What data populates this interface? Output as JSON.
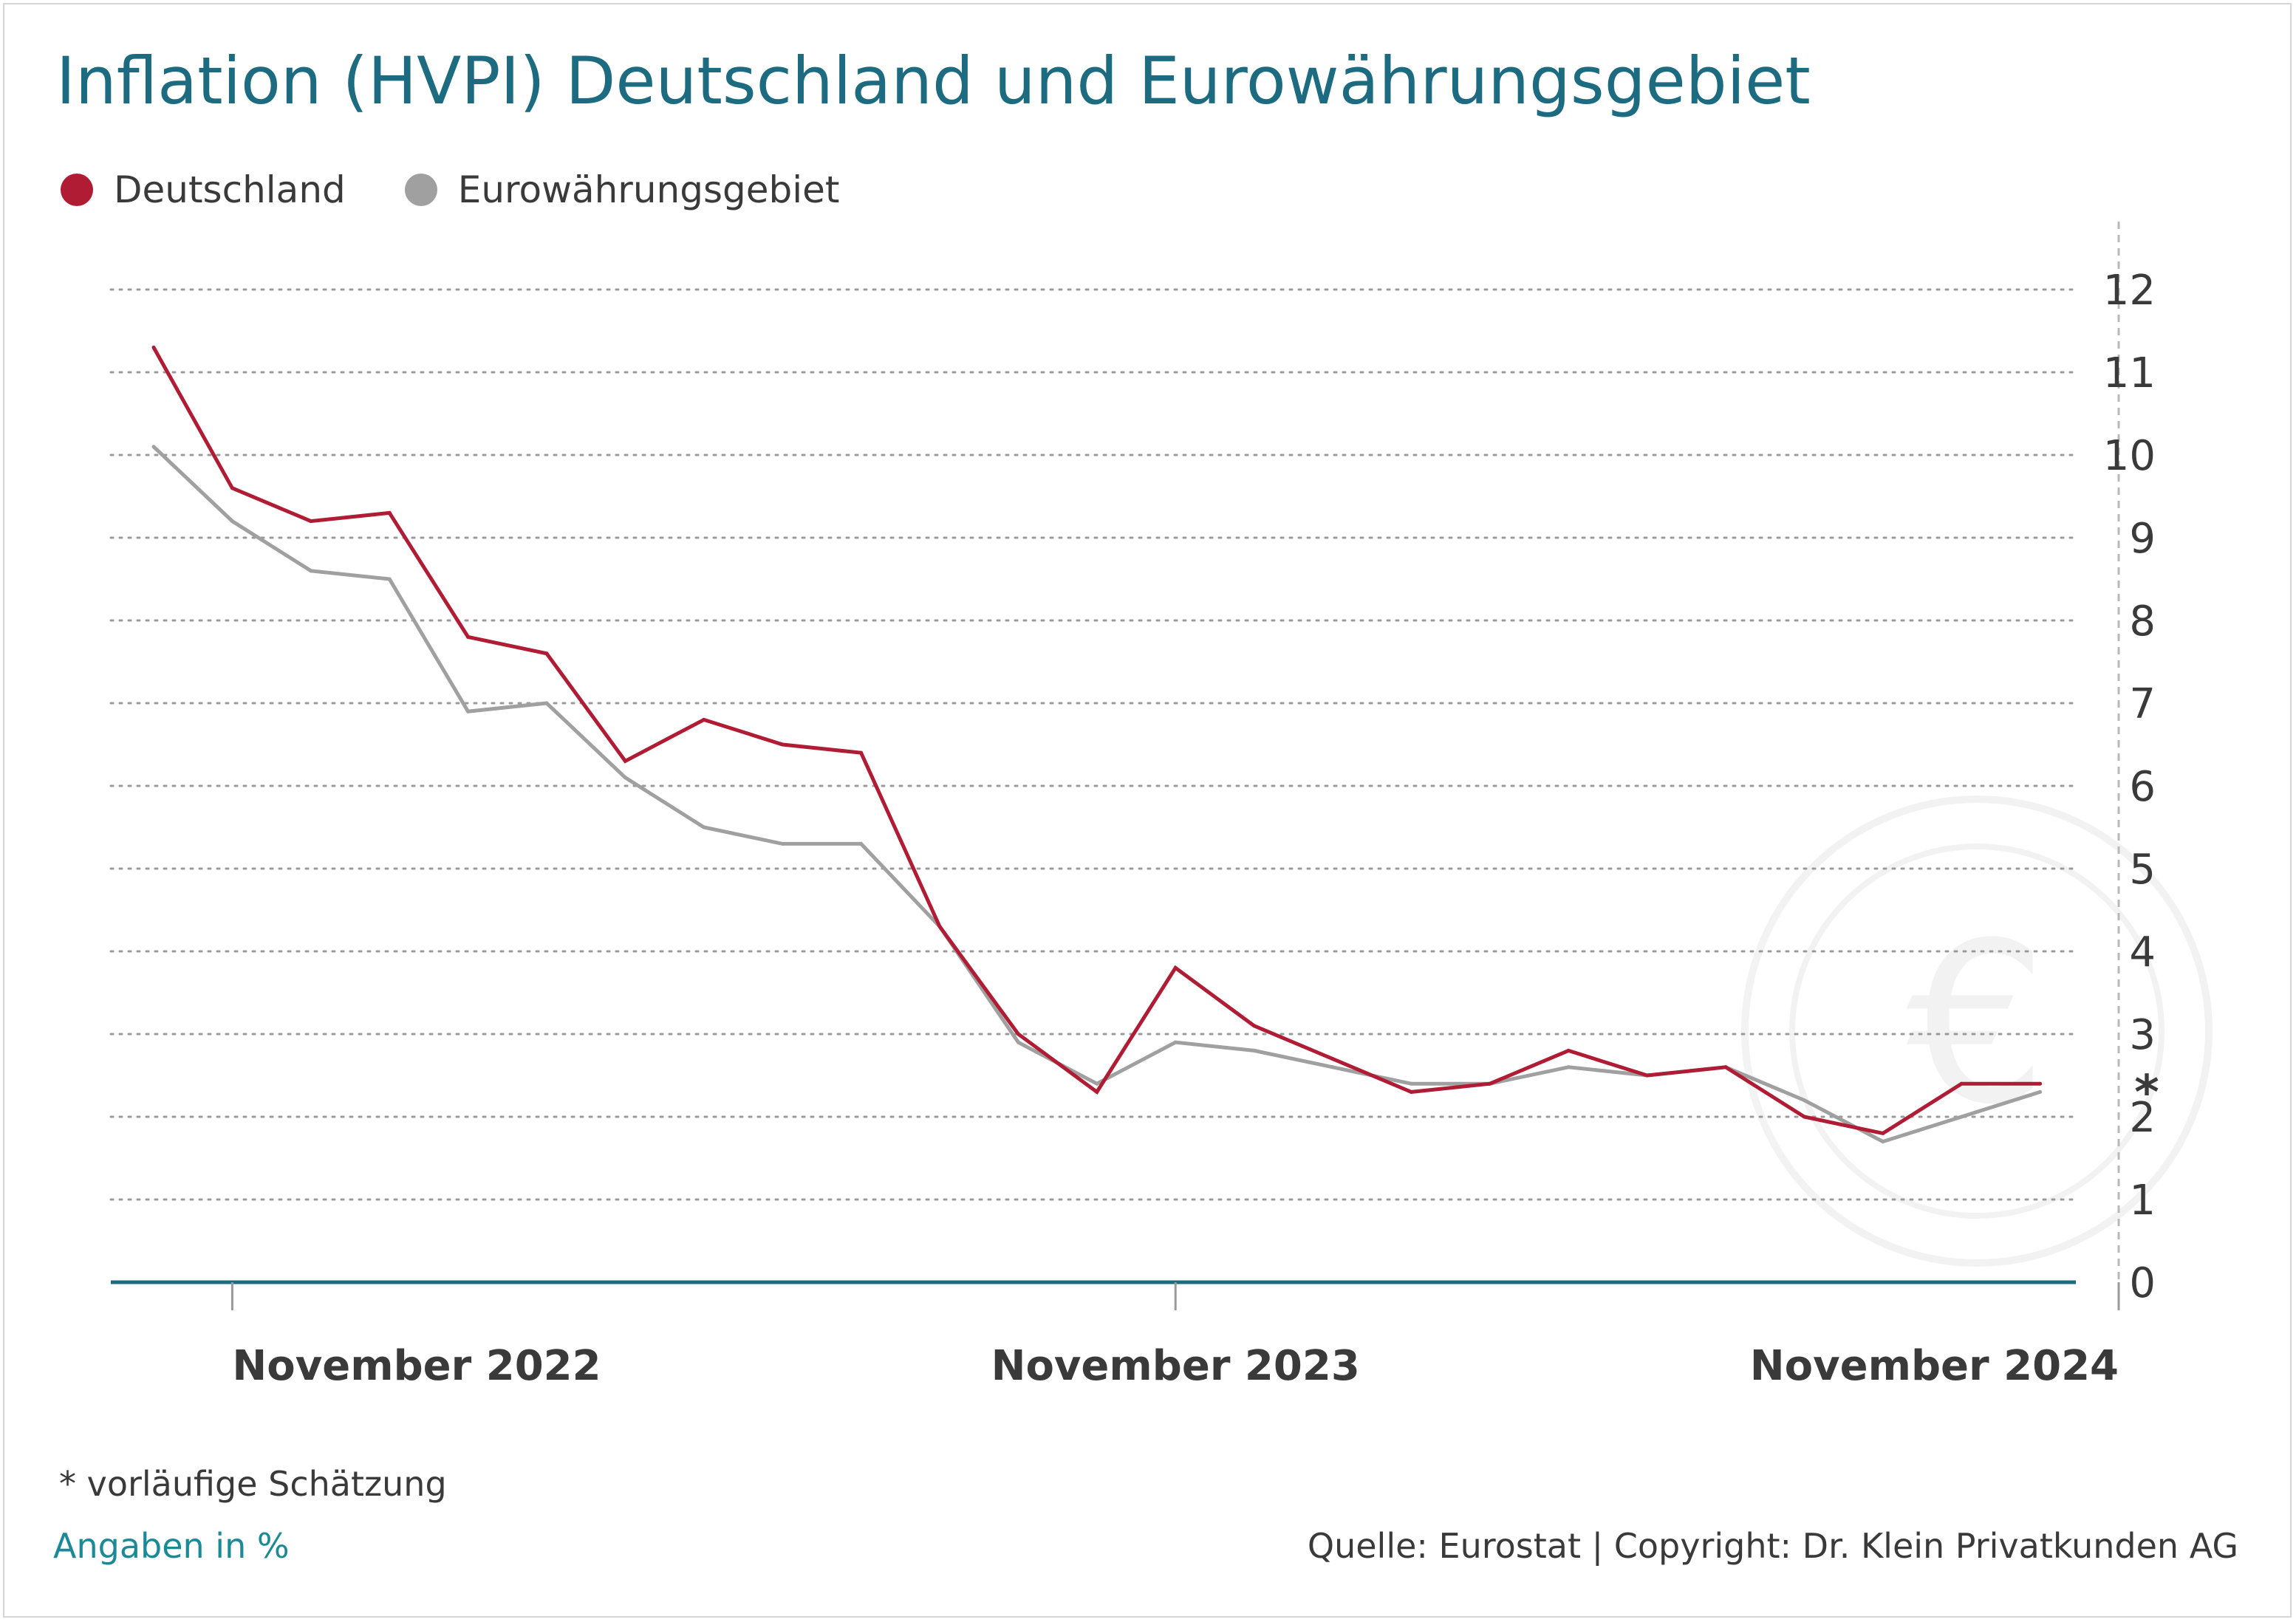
{
  "title": "Inflation (HVPI) Deutschland und Eurowährungsgebiet",
  "legend": {
    "items": [
      {
        "label": "Deutschland",
        "color": "#b01c34"
      },
      {
        "label": "Eurowährungsgebiet",
        "color": "#a0a0a0"
      }
    ]
  },
  "footnote": "*  vorläufige Schätzung",
  "units": "Angaben in %",
  "source": "Quelle: Eurostat | Copyright: Dr. Klein Privatkunden AG",
  "estimate_marker": "*",
  "watermark_icon": "euro-coin-icon",
  "colors": {
    "title": "#1c6b80",
    "axis": "#1c6b80",
    "grid": "#9a9a9a",
    "deutschland": "#b01c34",
    "euro": "#a0a0a0"
  },
  "chart_data": {
    "type": "line",
    "x": [
      "2022-10",
      "2022-11",
      "2022-12",
      "2023-01",
      "2023-02",
      "2023-03",
      "2023-04",
      "2023-05",
      "2023-06",
      "2023-07",
      "2023-08",
      "2023-09",
      "2023-10",
      "2023-11",
      "2023-12",
      "2024-01",
      "2024-02",
      "2024-03",
      "2024-04",
      "2024-05",
      "2024-06",
      "2024-07",
      "2024-08",
      "2024-09",
      "2024-10",
      "2024-11"
    ],
    "x_tick_labels": [
      {
        "x": "2022-11",
        "label": "November 2022"
      },
      {
        "x": "2023-11",
        "label": "November 2023"
      },
      {
        "x": "2024-11",
        "label": "November 2024"
      }
    ],
    "series": [
      {
        "name": "Deutschland",
        "color": "#b01c34",
        "values": [
          11.3,
          9.6,
          9.2,
          9.3,
          7.8,
          7.6,
          6.3,
          6.8,
          6.5,
          6.4,
          4.3,
          3.0,
          2.3,
          3.8,
          3.1,
          2.7,
          2.3,
          2.4,
          2.8,
          2.5,
          2.6,
          2.0,
          1.8,
          2.4,
          2.4,
          null
        ]
      },
      {
        "name": "Eurowährungsgebiet",
        "color": "#a0a0a0",
        "values": [
          10.1,
          9.2,
          8.6,
          8.5,
          6.9,
          7.0,
          6.1,
          5.5,
          5.3,
          5.3,
          4.3,
          2.9,
          2.4,
          2.9,
          2.8,
          2.6,
          2.4,
          2.4,
          2.6,
          2.5,
          2.6,
          2.2,
          1.7,
          2.0,
          2.3,
          null
        ]
      }
    ],
    "y_ticks": [
      0,
      1,
      2,
      3,
      4,
      5,
      6,
      7,
      8,
      9,
      10,
      11,
      12
    ],
    "ylim": [
      0,
      12
    ],
    "y_axis_side": "right",
    "grid": true,
    "legend_position": "top-left"
  }
}
